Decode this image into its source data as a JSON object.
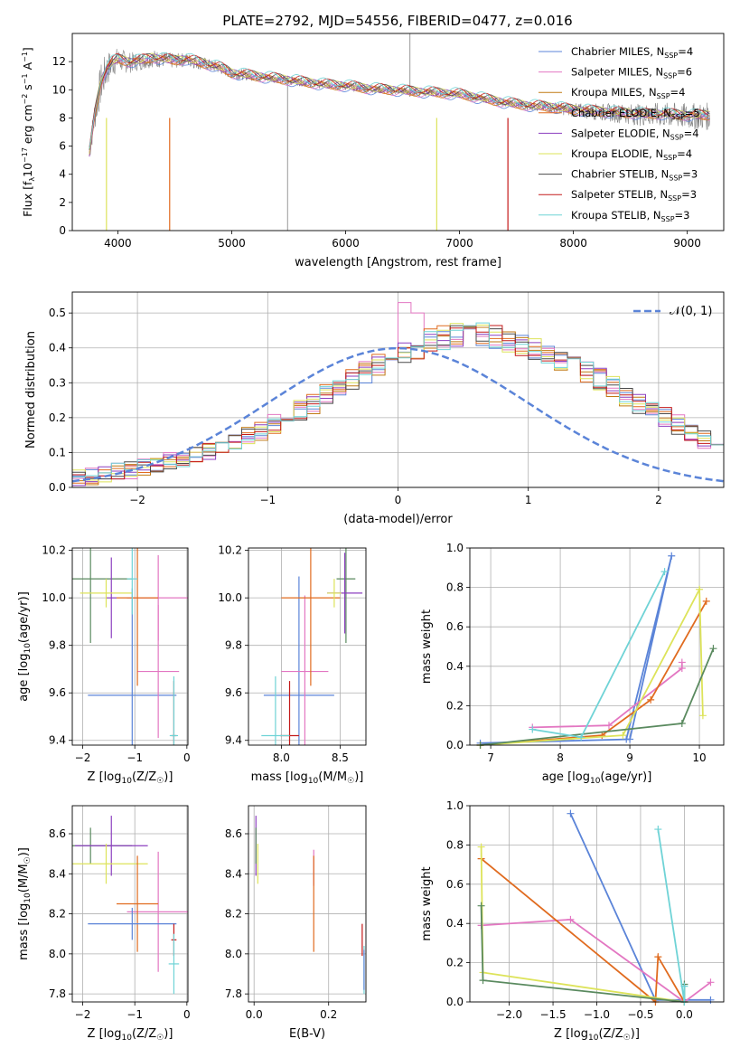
{
  "figure": {
    "title": "PLATE=2792, MJD=54556, FIBERID=0477, z=0.016"
  },
  "series": [
    {
      "name": "Chabrier MILES, N_{SSP}=4",
      "label_main": "Chabrier MILES, N",
      "label_sub": "SSP",
      "label_tail": "=4",
      "color": "#5b84d8"
    },
    {
      "name": "Salpeter MILES, N_{SSP}=6",
      "label_main": "Salpeter MILES, N",
      "label_sub": "SSP",
      "label_tail": "=6",
      "color": "#e377c2"
    },
    {
      "name": "Kroupa MILES, N_{SSP}=4",
      "label_main": "Kroupa MILES, N",
      "label_sub": "SSP",
      "label_tail": "=4",
      "color": "#c07a14"
    },
    {
      "name": "Chabrier ELODIE, N_{SSP}=5",
      "label_main": "Chabrier ELODIE, N",
      "label_sub": "SSP",
      "label_tail": "=5",
      "color": "#e06b1f"
    },
    {
      "name": "Salpeter ELODIE, N_{SSP}=4",
      "label_main": "Salpeter ELODIE, N",
      "label_sub": "SSP",
      "label_tail": "=4",
      "color": "#8c3fbf"
    },
    {
      "name": "Kroupa ELODIE, N_{SSP}=4",
      "label_main": "Kroupa ELODIE, N",
      "label_sub": "SSP",
      "label_tail": "=4",
      "color": "#dde35a"
    },
    {
      "name": "Chabrier STELIB, N_{SSP}=3",
      "label_main": "Chabrier STELIB, N",
      "label_sub": "SSP",
      "label_tail": "=3",
      "color": "#4a4a4a"
    },
    {
      "name": "Salpeter STELIB, N_{SSP}=3",
      "label_main": "Salpeter STELIB, N",
      "label_sub": "SSP",
      "label_tail": "=3",
      "color": "#c41a1a"
    },
    {
      "name": "Kroupa STELIB, N_{SSP}=3",
      "label_main": "Kroupa STELIB, N",
      "label_sub": "SSP",
      "label_tail": "=3",
      "color": "#6fd3d6"
    }
  ],
  "extra_colors": {
    "data_gray": "#808080",
    "green": "#5a8a5f",
    "gaussian": "#5b84d8",
    "grid": "#b0b0b0"
  },
  "chart_data": [
    {
      "id": "spectrum",
      "type": "line",
      "title": "PLATE=2792, MJD=54556, FIBERID=0477, z=0.016",
      "xlabel": "wavelength [Angstrom, rest frame]",
      "ylabel_pre": "Flux [f",
      "ylabel_sub": "λ",
      "ylabel_mid": "10",
      "ylabel_sup": "−17",
      "ylabel_post": " erg cm",
      "ylabel_sup2": "−2",
      "ylabel_mid2": " s",
      "ylabel_sup3": "−1",
      "ylabel_post2": " A",
      "ylabel_sup4": "−1",
      "ylabel_end": "]",
      "xlim": [
        3600,
        9320
      ],
      "ylim": [
        0,
        14
      ],
      "xticks": [
        4000,
        5000,
        6000,
        7000,
        8000,
        9000
      ],
      "yticks": [
        0,
        2,
        4,
        6,
        8,
        10,
        12
      ],
      "grid": false,
      "legend": "top-right",
      "data_x": [
        3750,
        3800,
        3850,
        3900,
        3950,
        4000,
        4100,
        4200,
        4300,
        4400,
        4500,
        4600,
        4700,
        4800,
        4900,
        5000,
        5200,
        5400,
        5600,
        5800,
        6000,
        6200,
        6400,
        6600,
        6800,
        7000,
        7200,
        7400,
        7600,
        7800,
        8000,
        8200,
        8400,
        8600,
        8800,
        9000,
        9200
      ],
      "model_y": [
        5.5,
        8.5,
        10.5,
        11.5,
        12.0,
        12.2,
        12.0,
        12.1,
        12.3,
        12.2,
        12.1,
        12.2,
        12.0,
        11.8,
        11.6,
        11.2,
        11.0,
        10.8,
        10.6,
        10.4,
        10.3,
        10.1,
        10.0,
        9.9,
        9.8,
        9.7,
        9.4,
        9.1,
        8.9,
        8.8,
        8.6,
        8.5,
        8.4,
        8.3,
        8.3,
        8.2,
        8.2
      ],
      "model_dips_x": [
        3900,
        4455,
        6800,
        7425
      ],
      "data_noise_amp": [
        1.2,
        2.5,
        3.0,
        2.6,
        2.0,
        1.8,
        1.5,
        1.3,
        1.3,
        1.2,
        1.1,
        1.0,
        1.0,
        0.9,
        0.9,
        0.8,
        0.7,
        0.6,
        0.6,
        0.6,
        0.6,
        0.6,
        0.6,
        0.6,
        0.5,
        0.5,
        0.5,
        0.5,
        0.6,
        0.8,
        1.0,
        1.2,
        1.4,
        1.6,
        1.8,
        1.9,
        2.0
      ]
    },
    {
      "id": "residuals",
      "type": "histogram",
      "xlabel": "(data-model)/error",
      "ylabel": "Normed distribution",
      "xlim": [
        -2.5,
        2.5
      ],
      "ylim": [
        0,
        0.56
      ],
      "xticks": [
        -2,
        -1,
        0,
        1,
        2
      ],
      "yticks": [
        0.0,
        0.1,
        0.2,
        0.3,
        0.4,
        0.5
      ],
      "grid": true,
      "legend": "top-right",
      "gaussian_label": "𝒩(0, 1)",
      "bins_start": -2.5,
      "bin_width": 0.1,
      "base_values": [
        0.025,
        0.03,
        0.035,
        0.045,
        0.05,
        0.06,
        0.065,
        0.075,
        0.08,
        0.095,
        0.105,
        0.11,
        0.125,
        0.145,
        0.16,
        0.18,
        0.2,
        0.22,
        0.24,
        0.265,
        0.29,
        0.31,
        0.33,
        0.35,
        0.37,
        0.385,
        0.4,
        0.42,
        0.43,
        0.44,
        0.43,
        0.44,
        0.43,
        0.42,
        0.41,
        0.4,
        0.385,
        0.37,
        0.35,
        0.33,
        0.31,
        0.29,
        0.265,
        0.24,
        0.22,
        0.2,
        0.18,
        0.16,
        0.14,
        0.125,
        0.11,
        0.095,
        0.08,
        0.07,
        0.06,
        0.05,
        0.045,
        0.035,
        0.03,
        0.025,
        0.02,
        0.02
      ]
    },
    {
      "id": "age-vs-Z",
      "type": "scatter",
      "xlabel_pre": "Z [log",
      "xlabel_sub": "10",
      "xlabel_post": "(Z/Z",
      "xlabel_sub2": "☉",
      "xlabel_end": ")]",
      "ylabel_pre": "age  [log",
      "ylabel_sub": "10",
      "ylabel_post": "(age/yr)]",
      "xlim": [
        -2.2,
        0.02
      ],
      "ylim": [
        9.38,
        10.21
      ],
      "xticks": [
        -2,
        -1,
        0
      ],
      "yticks": [
        9.4,
        9.6,
        9.8,
        10.0,
        10.2
      ],
      "grid": true,
      "errorbars": [
        {
          "s": 6,
          "x": -1.85,
          "y": 10.08,
          "xerr": 0.8,
          "yerr": 0.27
        },
        {
          "s": 0,
          "x": -1.05,
          "y": 9.59,
          "xerr": 0.85,
          "yerr": 0.45
        },
        {
          "s": 1,
          "x": -0.55,
          "y": 9.69,
          "xerr": 0.4,
          "yerr": 0.28
        },
        {
          "s": 1,
          "x": -0.55,
          "y": 10.0,
          "xerr": 0.6,
          "yerr": 0.18
        },
        {
          "s": 3,
          "x": -0.95,
          "y": 10.0,
          "xerr": 0.4,
          "yerr": 0.37
        },
        {
          "s": 4,
          "x": -1.45,
          "y": 10.0,
          "xerr": 0.1,
          "yerr": 0.17
        },
        {
          "s": 5,
          "x": -1.55,
          "y": 10.02,
          "xerr": 0.5,
          "yerr": 0.06
        },
        {
          "s": 8,
          "x": -1.05,
          "y": 10.08,
          "xerr": 0.1,
          "yerr": 0.15
        },
        {
          "s": 7,
          "x": -0.25,
          "y": 9.42,
          "xerr": 0.05,
          "yerr": 0.23
        },
        {
          "s": 8,
          "x": -0.25,
          "y": 9.42,
          "xerr": 0.08,
          "yerr": 0.25
        }
      ]
    },
    {
      "id": "age-vs-mass",
      "type": "scatter",
      "xlabel_pre": "mass [log",
      "xlabel_sub": "10",
      "xlabel_post": "(M/M",
      "xlabel_sub2": "☉",
      "xlabel_end": ")]",
      "xlim": [
        7.72,
        8.72
      ],
      "ylim": [
        9.38,
        10.21
      ],
      "xticks": [
        8.0,
        8.5
      ],
      "yticks": [
        9.4,
        9.6,
        9.8,
        10.0,
        10.2
      ],
      "grid": true,
      "errorbars": [
        {
          "s": 6,
          "x": 8.55,
          "y": 10.08,
          "xerr": 0.08,
          "yerr": 0.27
        },
        {
          "s": 0,
          "x": 8.15,
          "y": 9.59,
          "xerr": 0.3,
          "yerr": 0.5
        },
        {
          "s": 1,
          "x": 8.2,
          "y": 9.69,
          "xerr": 0.2,
          "yerr": 0.32
        },
        {
          "s": 3,
          "x": 8.25,
          "y": 10.0,
          "xerr": 0.25,
          "yerr": 0.37
        },
        {
          "s": 4,
          "x": 8.54,
          "y": 10.02,
          "xerr": 0.15,
          "yerr": 0.17
        },
        {
          "s": 5,
          "x": 8.45,
          "y": 10.02,
          "xerr": 0.06,
          "yerr": 0.06
        },
        {
          "s": 7,
          "x": 8.07,
          "y": 9.42,
          "xerr": 0.08,
          "yerr": 0.23
        },
        {
          "s": 8,
          "x": 7.95,
          "y": 9.42,
          "xerr": 0.12,
          "yerr": 0.25
        }
      ]
    },
    {
      "id": "massweight-vs-age",
      "type": "line",
      "xlabel_pre": "age  [log",
      "xlabel_sub": "10",
      "xlabel_post": "(age/yr)]",
      "ylabel": "mass weight",
      "xlim": [
        6.7,
        10.35
      ],
      "ylim": [
        0,
        1.0
      ],
      "xticks": [
        7,
        8,
        9,
        10
      ],
      "yticks": [
        0.0,
        0.2,
        0.4,
        0.6,
        0.8,
        1.0
      ],
      "grid": true,
      "series": [
        {
          "s": 0,
          "x": [
            6.85,
            9.0,
            9.6,
            8.95
          ],
          "y": [
            0.01,
            0.03,
            0.96,
            0.03
          ]
        },
        {
          "s": 1,
          "x": [
            7.6,
            8.7,
            9.75,
            9.75
          ],
          "y": [
            0.09,
            0.1,
            0.39,
            0.42
          ]
        },
        {
          "s": 3,
          "x": [
            6.85,
            8.6,
            9.3,
            10.1
          ],
          "y": [
            0.0,
            0.05,
            0.23,
            0.73
          ]
        },
        {
          "s": 5,
          "x": [
            6.85,
            8.9,
            10.0,
            10.05
          ],
          "y": [
            0.0,
            0.05,
            0.79,
            0.15
          ]
        },
        {
          "s": 6,
          "x": [
            6.85,
            9.75,
            10.2
          ],
          "y": [
            0.0,
            0.11,
            0.49
          ]
        },
        {
          "s": 8,
          "x": [
            7.6,
            8.3,
            9.5
          ],
          "y": [
            0.08,
            0.04,
            0.88
          ]
        }
      ]
    },
    {
      "id": "mass-vs-Z",
      "type": "scatter",
      "xlabel_pre": "Z [log",
      "xlabel_sub": "10",
      "xlabel_post": "(Z/Z",
      "xlabel_sub2": "☉",
      "xlabel_end": ")]",
      "ylabel_pre": "mass [log",
      "ylabel_sub": "10",
      "ylabel_post": "(M/M",
      "ylabel_sub2": "☉",
      "ylabel_end": ")]",
      "xlim": [
        -2.2,
        0.02
      ],
      "ylim": [
        7.76,
        8.74
      ],
      "xticks": [
        -2,
        -1,
        0
      ],
      "yticks": [
        7.8,
        8.0,
        8.2,
        8.4,
        8.6
      ],
      "grid": true,
      "errorbars": [
        {
          "s": 6,
          "x": -1.85,
          "y": 8.54,
          "xerr": 0.8,
          "yerr": 0.09
        },
        {
          "s": 4,
          "x": -1.45,
          "y": 8.54,
          "xerr": 0.7,
          "yerr": 0.15
        },
        {
          "s": 5,
          "x": -1.55,
          "y": 8.45,
          "xerr": 0.8,
          "yerr": 0.1
        },
        {
          "s": 1,
          "x": -0.55,
          "y": 8.21,
          "xerr": 0.6,
          "yerr": 0.3
        },
        {
          "s": 3,
          "x": -0.95,
          "y": 8.25,
          "xerr": 0.4,
          "yerr": 0.24
        },
        {
          "s": 0,
          "x": -1.05,
          "y": 8.15,
          "xerr": 0.85,
          "yerr": 0.08
        },
        {
          "s": 7,
          "x": -0.25,
          "y": 8.07,
          "xerr": 0.05,
          "yerr": 0.08
        },
        {
          "s": 8,
          "x": -0.25,
          "y": 7.95,
          "xerr": 0.1,
          "yerr": 0.15
        }
      ]
    },
    {
      "id": "mass-vs-ebv",
      "type": "scatter",
      "xlabel": "E(B-V)",
      "xlim": [
        -0.015,
        0.3
      ],
      "ylim": [
        7.76,
        8.74
      ],
      "xticks": [
        0.0,
        0.2
      ],
      "yticks": [
        7.8,
        8.0,
        8.2,
        8.4,
        8.6
      ],
      "grid": true,
      "errorbars": [
        {
          "s": 4,
          "x": 0.005,
          "y": 8.54,
          "xerr": 0,
          "yerr": 0.15
        },
        {
          "s": 6,
          "x": 0.005,
          "y": 8.54,
          "xerr": 0,
          "yerr": 0.09
        },
        {
          "s": 5,
          "x": 0.01,
          "y": 8.45,
          "xerr": 0,
          "yerr": 0.1
        },
        {
          "s": 1,
          "x": 0.16,
          "y": 8.43,
          "xerr": 0,
          "yerr": 0.09
        },
        {
          "s": 3,
          "x": 0.16,
          "y": 8.25,
          "xerr": 0,
          "yerr": 0.24
        },
        {
          "s": 7,
          "x": 0.29,
          "y": 8.07,
          "xerr": 0,
          "yerr": 0.08
        },
        {
          "s": 8,
          "x": 0.295,
          "y": 7.92,
          "xerr": 0,
          "yerr": 0.12
        },
        {
          "s": 0,
          "x": 0.295,
          "y": 7.92,
          "xerr": 0,
          "yerr": 0.1
        }
      ]
    },
    {
      "id": "massweight-vs-Z",
      "type": "line",
      "xlabel_pre": "Z [log",
      "xlabel_sub": "10",
      "xlabel_post": "(Z/Z",
      "xlabel_sub2": "☉",
      "xlabel_end": ")]",
      "ylabel": "mass weight",
      "xlim": [
        -2.45,
        0.45
      ],
      "ylim": [
        0,
        1.0
      ],
      "xticks": [
        -2.0,
        -1.5,
        -1.0,
        -0.5,
        0.0
      ],
      "yticks": [
        0.0,
        0.2,
        0.4,
        0.6,
        0.8,
        1.0
      ],
      "grid": true,
      "series": [
        {
          "s": 0,
          "x": [
            -1.3,
            -0.33,
            0.3
          ],
          "y": [
            0.96,
            0.01,
            0.01
          ]
        },
        {
          "s": 1,
          "x": [
            -2.32,
            -1.3,
            0.0,
            0.3
          ],
          "y": [
            0.39,
            0.42,
            0.0,
            0.1
          ]
        },
        {
          "s": 3,
          "x": [
            -2.32,
            -0.33,
            -0.3,
            0.0
          ],
          "y": [
            0.73,
            0.0,
            0.23,
            0.0
          ]
        },
        {
          "s": 5,
          "x": [
            -2.32,
            -2.3,
            0.0
          ],
          "y": [
            0.79,
            0.15,
            0.0
          ]
        },
        {
          "s": 6,
          "x": [
            -2.32,
            -2.3,
            0.0,
            0.0
          ],
          "y": [
            0.49,
            0.11,
            0.0,
            0.09
          ]
        },
        {
          "s": 8,
          "x": [
            -0.3,
            0.0,
            0.0
          ],
          "y": [
            0.88,
            0.0,
            0.08
          ]
        }
      ]
    }
  ]
}
